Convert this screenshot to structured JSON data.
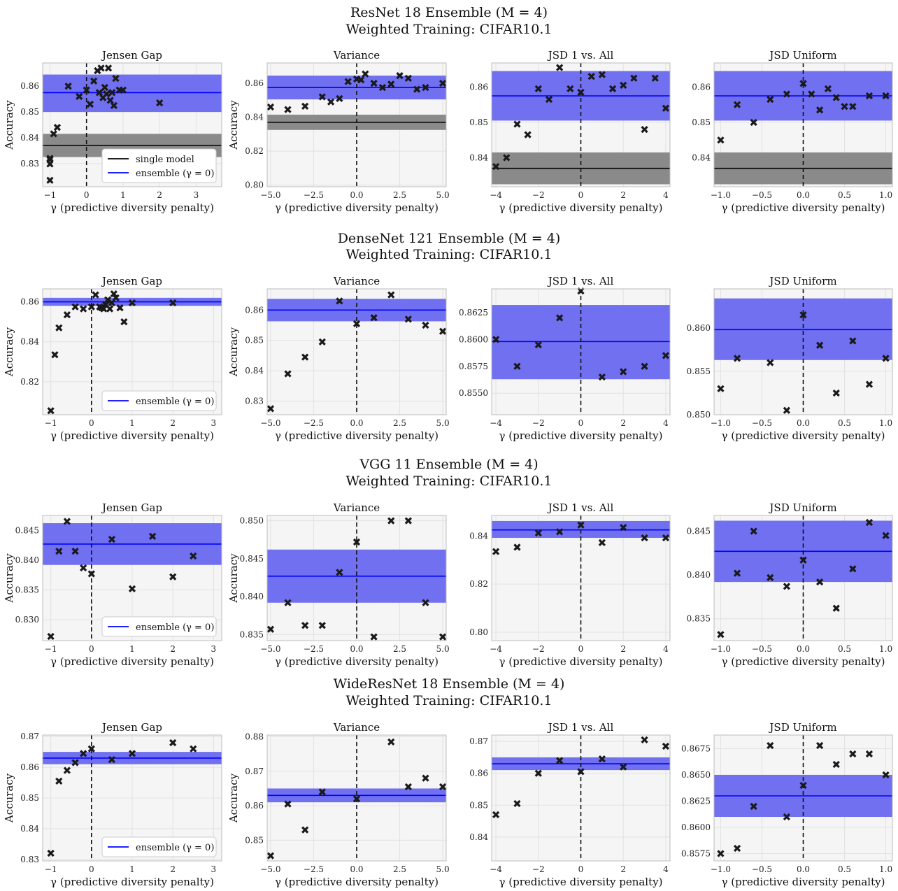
{
  "rows": [
    {
      "title_line1": "ResNet 18 Ensemble (M = 4)",
      "title_line2": "Weighted Training: CIFAR10.1"
    },
    {
      "title_line1": "DenseNet 121 Ensemble (M = 4)",
      "title_line2": "Weighted Training: CIFAR10.1"
    },
    {
      "title_line1": "VGG 11 Ensemble (M = 4)",
      "title_line2": "Weighted Training: CIFAR10.1"
    },
    {
      "title_line1": "WideResNet 18 Ensemble (M = 4)",
      "title_line2": "Weighted Training: CIFAR10.1"
    }
  ],
  "colors": {
    "ensemble": "#0000ff",
    "ensemble_band": "#7070f0",
    "single": "#000000",
    "single_band": "#8a8a8a",
    "marker": "#1a1a1a",
    "background": "#f5f5f5",
    "grid": "#e2e2e2"
  },
  "legend_labels": {
    "single": "single model",
    "ensemble": "ensemble (γ = 0)"
  },
  "chart_data": [
    {
      "type": "scatter",
      "title": "Jensen Gap",
      "xlabel": "γ (predictive diversity penalty)",
      "ylabel": "Accuracy",
      "xlim": [
        -1.2,
        3.7
      ],
      "ylim": [
        0.821,
        0.869
      ],
      "xticks": [
        -1,
        0,
        1,
        2,
        3
      ],
      "yticks": [
        0.83,
        0.84,
        0.85,
        0.86
      ],
      "ensemble": {
        "mean": 0.8575,
        "low": 0.85,
        "high": 0.8645
      },
      "single": {
        "mean": 0.837,
        "low": 0.8325,
        "high": 0.8415
      },
      "legend": [
        "single",
        "ensemble"
      ],
      "x": [
        -1,
        -1,
        -1,
        -1,
        -0.9,
        -0.8,
        -0.5,
        -0.2,
        0,
        0.1,
        0.2,
        0.3,
        0.35,
        0.4,
        0.45,
        0.5,
        0.55,
        0.6,
        0.65,
        0.7,
        0.75,
        0.8,
        0.9,
        1,
        2
      ],
      "y": [
        0.8235,
        0.8298,
        0.8315,
        0.832,
        0.8415,
        0.844,
        0.86,
        0.856,
        0.8585,
        0.853,
        0.862,
        0.866,
        0.8575,
        0.867,
        0.8555,
        0.8595,
        0.857,
        0.867,
        0.8545,
        0.8575,
        0.8525,
        0.863,
        0.8585,
        0.8585,
        0.8535
      ]
    },
    {
      "type": "scatter",
      "title": "Variance",
      "xlabel": "γ (predictive diversity penalty)",
      "ylabel": "Accuracy",
      "xlim": [
        -5.2,
        5.2
      ],
      "ylim": [
        0.799,
        0.872
      ],
      "xticks": [
        -5.0,
        -2.5,
        0.0,
        2.5,
        5.0
      ],
      "yticks": [
        0.8,
        0.82,
        0.84,
        0.86
      ],
      "ensemble": {
        "mean": 0.8575,
        "low": 0.8505,
        "high": 0.8645
      },
      "single": {
        "mean": 0.837,
        "low": 0.8325,
        "high": 0.8415
      },
      "legend": [],
      "x": [
        -5,
        -4,
        -3,
        -2,
        -1.5,
        -1,
        -0.5,
        0,
        0.25,
        0.5,
        1,
        1.5,
        2,
        2.5,
        3,
        3.5,
        4,
        5
      ],
      "y": [
        0.846,
        0.8445,
        0.8465,
        0.852,
        0.849,
        0.851,
        0.861,
        0.8625,
        0.862,
        0.8655,
        0.86,
        0.8575,
        0.8595,
        0.8645,
        0.863,
        0.8565,
        0.8575,
        0.86
      ]
    },
    {
      "type": "scatter",
      "title": "JSD 1 vs. All",
      "xlabel": "γ (predictive diversity penalty)",
      "ylabel": "",
      "xlim": [
        -4.2,
        4.2
      ],
      "ylim": [
        0.8318,
        0.8668
      ],
      "xticks": [
        -4,
        -2,
        0,
        2,
        4
      ],
      "yticks": [
        0.84,
        0.85,
        0.86
      ],
      "ensemble": {
        "mean": 0.8575,
        "low": 0.8505,
        "high": 0.8645
      },
      "single": {
        "mean": 0.837,
        "low": 0.8325,
        "high": 0.8415
      },
      "legend": [],
      "x": [
        -4,
        -3.5,
        -3,
        -2.5,
        -2,
        -1.5,
        -1,
        -0.5,
        0,
        0.5,
        1,
        1.5,
        2,
        2.5,
        3,
        3.5,
        4
      ],
      "y": [
        0.8375,
        0.84,
        0.8495,
        0.8465,
        0.8595,
        0.8565,
        0.8655,
        0.8595,
        0.8585,
        0.863,
        0.8635,
        0.8595,
        0.8605,
        0.8625,
        0.848,
        0.8625,
        0.854
      ]
    },
    {
      "type": "scatter",
      "title": "JSD Uniform",
      "xlabel": "γ (predictive diversity penalty)",
      "ylabel": "",
      "xlim": [
        -1.08,
        1.08
      ],
      "ylim": [
        0.8318,
        0.8668
      ],
      "xticks": [
        -1.0,
        -0.5,
        0.0,
        0.5,
        1.0
      ],
      "yticks": [
        0.84,
        0.85,
        0.86
      ],
      "ensemble": {
        "mean": 0.8575,
        "low": 0.8505,
        "high": 0.8645
      },
      "single": {
        "mean": 0.837,
        "low": 0.8325,
        "high": 0.8415
      },
      "legend": [],
      "x": [
        -1,
        -0.8,
        -0.6,
        -0.4,
        -0.2,
        0,
        0.1,
        0.2,
        0.3,
        0.4,
        0.5,
        0.6,
        0.8,
        1
      ],
      "y": [
        0.845,
        0.855,
        0.85,
        0.8565,
        0.858,
        0.861,
        0.858,
        0.8535,
        0.8595,
        0.857,
        0.8545,
        0.8545,
        0.8575,
        0.8575
      ]
    },
    {
      "type": "scatter",
      "title": "Jensen Gap",
      "xlabel": "γ (predictive diversity penalty)",
      "ylabel": "Accuracy",
      "xlim": [
        -1.2,
        3.2
      ],
      "ylim": [
        0.8035,
        0.8665
      ],
      "xticks": [
        -1,
        0,
        1,
        2,
        3
      ],
      "yticks": [
        0.82,
        0.84,
        0.86
      ],
      "ensemble": {
        "mean": 0.86,
        "low": 0.858,
        "high": 0.862
      },
      "single": null,
      "legend": [
        "ensemble"
      ],
      "x": [
        -1,
        -0.9,
        -0.8,
        -0.6,
        -0.4,
        -0.2,
        0,
        0.1,
        0.2,
        0.25,
        0.3,
        0.35,
        0.4,
        0.45,
        0.5,
        0.55,
        0.6,
        0.7,
        0.8,
        1,
        2
      ],
      "y": [
        0.8055,
        0.8335,
        0.847,
        0.8535,
        0.8575,
        0.8565,
        0.8575,
        0.8635,
        0.8575,
        0.857,
        0.8565,
        0.8585,
        0.861,
        0.8565,
        0.8595,
        0.864,
        0.862,
        0.857,
        0.85,
        0.8595,
        0.8595
      ]
    },
    {
      "type": "scatter",
      "title": "Variance",
      "xlabel": "γ (predictive diversity penalty)",
      "ylabel": "Accuracy",
      "xlim": [
        -5.2,
        5.2
      ],
      "ylim": [
        0.8255,
        0.867
      ],
      "xticks": [
        -5.0,
        -2.5,
        0.0,
        2.5,
        5.0
      ],
      "yticks": [
        0.83,
        0.84,
        0.85,
        0.86
      ],
      "ensemble": {
        "mean": 0.86,
        "low": 0.8563,
        "high": 0.8637
      },
      "single": null,
      "legend": [],
      "x": [
        -5,
        -4,
        -3,
        -2,
        -1,
        0,
        1,
        2,
        3,
        4,
        5
      ],
      "y": [
        0.8275,
        0.839,
        0.8445,
        0.8495,
        0.863,
        0.8555,
        0.8575,
        0.865,
        0.857,
        0.855,
        0.853
      ]
    },
    {
      "type": "scatter",
      "title": "JSD 1 vs. All",
      "xlabel": "γ (predictive diversity penalty)",
      "ylabel": "",
      "xlim": [
        -4.2,
        4.2
      ],
      "ylim": [
        0.853,
        0.8647
      ],
      "xticks": [
        -4,
        -2,
        0,
        2,
        4
      ],
      "yticks": [
        0.855,
        0.8575,
        0.86,
        0.8625
      ],
      "ensemble": {
        "mean": 0.8598,
        "low": 0.8563,
        "high": 0.8632
      },
      "single": null,
      "legend": [],
      "x": [
        -4,
        -3,
        -2,
        -1,
        0,
        1,
        2,
        3,
        4
      ],
      "y": [
        0.86,
        0.8575,
        0.8595,
        0.862,
        0.8645,
        0.8565,
        0.857,
        0.8575,
        0.8585
      ]
    },
    {
      "type": "scatter",
      "title": "JSD Uniform",
      "xlabel": "γ (predictive diversity penalty)",
      "ylabel": "",
      "xlim": [
        -1.08,
        1.08
      ],
      "ylim": [
        0.85,
        0.8645
      ],
      "xticks": [
        -1.0,
        -0.5,
        0.0,
        0.5,
        1.0
      ],
      "yticks": [
        0.85,
        0.855,
        0.86
      ],
      "ensemble": {
        "mean": 0.8598,
        "low": 0.8563,
        "high": 0.8634
      },
      "single": null,
      "legend": [],
      "x": [
        -1,
        -0.8,
        -0.4,
        -0.2,
        0,
        0.2,
        0.4,
        0.6,
        0.8,
        1
      ],
      "y": [
        0.853,
        0.8565,
        0.856,
        0.8505,
        0.8615,
        0.858,
        0.8525,
        0.8585,
        0.8535,
        0.8565
      ]
    },
    {
      "type": "scatter",
      "title": "Jensen Gap",
      "xlabel": "γ (predictive diversity penalty)",
      "ylabel": "Accuracy",
      "xlim": [
        -1.2,
        3.2
      ],
      "ylim": [
        0.8265,
        0.8475
      ],
      "xticks": [
        -1,
        0,
        1,
        2,
        3
      ],
      "yticks": [
        0.83,
        0.835,
        0.84,
        0.845
      ],
      "ensemble": {
        "mean": 0.8427,
        "low": 0.8392,
        "high": 0.8462
      },
      "single": null,
      "legend": [
        "ensemble"
      ],
      "x": [
        -1,
        -0.8,
        -0.6,
        -0.4,
        -0.2,
        0,
        0.5,
        1,
        1.5,
        2,
        2.5
      ],
      "y": [
        0.8272,
        0.8415,
        0.8465,
        0.8415,
        0.8387,
        0.8377,
        0.8435,
        0.8352,
        0.844,
        0.8372,
        0.8407
      ]
    },
    {
      "type": "scatter",
      "title": "Variance",
      "xlabel": "γ (predictive diversity penalty)",
      "ylabel": "Accuracy",
      "xlim": [
        -5.2,
        5.2
      ],
      "ylim": [
        0.8342,
        0.8507
      ],
      "xticks": [
        -5.0,
        -2.5,
        0.0,
        2.5,
        5.0
      ],
      "yticks": [
        0.835,
        0.84,
        0.845,
        0.85
      ],
      "ensemble": {
        "mean": 0.8427,
        "low": 0.8392,
        "high": 0.8462
      },
      "single": null,
      "legend": [],
      "x": [
        -5,
        -4,
        -3,
        -2,
        -1,
        0,
        1,
        2,
        3,
        4,
        5
      ],
      "y": [
        0.8357,
        0.8392,
        0.8362,
        0.8362,
        0.8432,
        0.8472,
        0.8347,
        0.85,
        0.85,
        0.8392,
        0.8347
      ]
    },
    {
      "type": "scatter",
      "title": "JSD 1 vs. All",
      "xlabel": "γ (predictive diversity penalty)",
      "ylabel": "",
      "xlim": [
        -4.2,
        4.2
      ],
      "ylim": [
        0.7965,
        0.8485
      ],
      "xticks": [
        -4,
        -2,
        0,
        2,
        4
      ],
      "yticks": [
        0.8,
        0.82,
        0.84
      ],
      "ensemble": {
        "mean": 0.8425,
        "low": 0.8392,
        "high": 0.8462
      },
      "single": null,
      "legend": [],
      "x": [
        -4,
        -3,
        -2,
        -1,
        0,
        1,
        2,
        3,
        4
      ],
      "y": [
        0.8335,
        0.8353,
        0.8412,
        0.8417,
        0.8445,
        0.8372,
        0.8435,
        0.8392,
        0.8392
      ]
    },
    {
      "type": "scatter",
      "title": "JSD Uniform",
      "xlabel": "γ (predictive diversity penalty)",
      "ylabel": "",
      "xlim": [
        -1.08,
        1.08
      ],
      "ylim": [
        0.8325,
        0.8468
      ],
      "xticks": [
        -1.0,
        -0.5,
        0.0,
        0.5,
        1.0
      ],
      "yticks": [
        0.835,
        0.84,
        0.845
      ],
      "ensemble": {
        "mean": 0.8427,
        "low": 0.8392,
        "high": 0.8462
      },
      "single": null,
      "legend": [],
      "x": [
        -1,
        -0.8,
        -0.6,
        -0.4,
        -0.2,
        0,
        0.2,
        0.4,
        0.6,
        0.8,
        1
      ],
      "y": [
        0.8332,
        0.8402,
        0.845,
        0.8397,
        0.8387,
        0.8417,
        0.8392,
        0.8362,
        0.8407,
        0.846,
        0.8445
      ]
    },
    {
      "type": "scatter",
      "title": "Jensen Gap",
      "xlabel": "γ (predictive diversity penalty)",
      "ylabel": "Accuracy",
      "xlim": [
        -1.2,
        3.2
      ],
      "ylim": [
        0.8295,
        0.8705
      ],
      "xticks": [
        -1,
        0,
        1,
        2,
        3
      ],
      "yticks": [
        0.83,
        0.84,
        0.85,
        0.86,
        0.87
      ],
      "ensemble": {
        "mean": 0.863,
        "low": 0.861,
        "high": 0.865
      },
      "single": null,
      "legend": [
        "ensemble"
      ],
      "x": [
        -1,
        -0.8,
        -0.6,
        -0.4,
        -0.2,
        0,
        0.5,
        1,
        2,
        2.5
      ],
      "y": [
        0.832,
        0.8555,
        0.859,
        0.8615,
        0.8645,
        0.866,
        0.8625,
        0.8645,
        0.868,
        0.866
      ]
    },
    {
      "type": "scatter",
      "title": "Variance",
      "xlabel": "γ (predictive diversity penalty)",
      "ylabel": "Accuracy",
      "xlim": [
        -5.2,
        5.2
      ],
      "ylim": [
        0.844,
        0.8805
      ],
      "xticks": [
        -5.0,
        -2.5,
        0.0,
        2.5,
        5.0
      ],
      "yticks": [
        0.85,
        0.86,
        0.87,
        0.88
      ],
      "ensemble": {
        "mean": 0.863,
        "low": 0.861,
        "high": 0.865
      },
      "single": null,
      "legend": [],
      "x": [
        -5,
        -4,
        -3,
        -2,
        0,
        2,
        3,
        4,
        5
      ],
      "y": [
        0.8455,
        0.8605,
        0.853,
        0.864,
        0.862,
        0.8785,
        0.8655,
        0.868,
        0.8655
      ]
    },
    {
      "type": "scatter",
      "title": "JSD 1 vs. All",
      "xlabel": "γ (predictive diversity penalty)",
      "ylabel": "",
      "xlim": [
        -4.2,
        4.2
      ],
      "ylim": [
        0.8325,
        0.872
      ],
      "xticks": [
        -4,
        -2,
        0,
        2,
        4
      ],
      "yticks": [
        0.84,
        0.85,
        0.86,
        0.87
      ],
      "ensemble": {
        "mean": 0.863,
        "low": 0.861,
        "high": 0.865
      },
      "single": null,
      "legend": [],
      "x": [
        -4,
        -3,
        -2,
        -1,
        0,
        1,
        2,
        3,
        4
      ],
      "y": [
        0.847,
        0.8505,
        0.86,
        0.864,
        0.8605,
        0.8645,
        0.862,
        0.8705,
        0.8685
      ]
    },
    {
      "type": "scatter",
      "title": "JSD Uniform",
      "xlabel": "γ (predictive diversity penalty)",
      "ylabel": "",
      "xlim": [
        -1.08,
        1.08
      ],
      "ylim": [
        0.8568,
        0.8688
      ],
      "xticks": [
        -1.0,
        -0.5,
        0.0,
        0.5,
        1.0
      ],
      "yticks": [
        0.8575,
        0.86,
        0.8625,
        0.865,
        0.8675
      ],
      "ensemble": {
        "mean": 0.863,
        "low": 0.861,
        "high": 0.865
      },
      "single": null,
      "legend": [],
      "x": [
        -1,
        -0.8,
        -0.6,
        -0.4,
        -0.2,
        0,
        0.2,
        0.4,
        0.6,
        0.8,
        1
      ],
      "y": [
        0.8575,
        0.858,
        0.862,
        0.8678,
        0.861,
        0.864,
        0.8678,
        0.866,
        0.867,
        0.867,
        0.865
      ]
    }
  ]
}
